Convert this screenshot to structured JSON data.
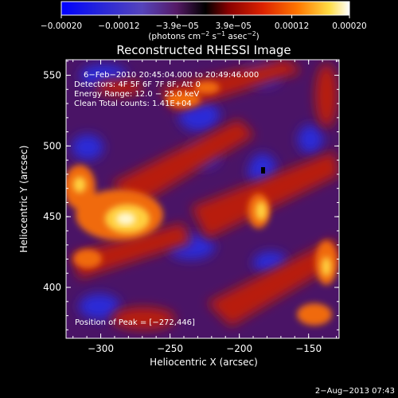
{
  "chart_data": {
    "type": "heatmap",
    "title": "Reconstructed RHESSI Image",
    "xlabel": "Heliocentric X (arcsec)",
    "ylabel": "Heliocentric Y (arcsec)",
    "xlim": [
      -325,
      -128
    ],
    "ylim": [
      364,
      561
    ],
    "x_ticks": [
      -300,
      -250,
      -200,
      -150
    ],
    "y_ticks": [
      400,
      450,
      500,
      550
    ],
    "x_tick_labels": [
      "−300",
      "−250",
      "−200",
      "−150"
    ],
    "y_tick_labels": [
      "400",
      "450",
      "500",
      "550"
    ],
    "colorbar": {
      "range": [
        -0.0002,
        0.0002
      ],
      "ticks": [
        -0.0002,
        -0.00012,
        -3.9e-05,
        3.9e-05,
        0.00012,
        0.0002
      ],
      "tick_labels": [
        "−0.00020",
        "−0.00012",
        "−3.9e−05",
        "3.9e−05",
        "0.00012",
        "0.00020"
      ],
      "unit_parts": [
        "(photons cm",
        "−2",
        " s",
        "−1",
        " asec",
        "−2",
        ")"
      ],
      "colors": [
        "#0000ff",
        "#2222dd",
        "#5544bb",
        "#551a66",
        "#000000",
        "#880000",
        "#dd2200",
        "#ff7700",
        "#ffdd44",
        "#ffffff"
      ]
    },
    "annotations": [
      "6−Feb−2010 20:45:04.000 to 20:49:46.000",
      "Detectors: 4F 5F 6F 7F 8F, Att 0",
      "Energy Range: 12.0 − 25.0 keV",
      "Clean    Total counts: 1.41E+04"
    ],
    "peak_label": "Position of Peak = [−272,446]",
    "peak": [
      -272,
      446
    ],
    "footer_date": "2−Aug−2013 07:43",
    "map_colors": {
      "background": "#4a1466",
      "blue": "#2a2ad8",
      "red": "#b81a10",
      "orange": "#f06a10",
      "yellow": "#ffd040",
      "white": "#fff8d0"
    }
  }
}
